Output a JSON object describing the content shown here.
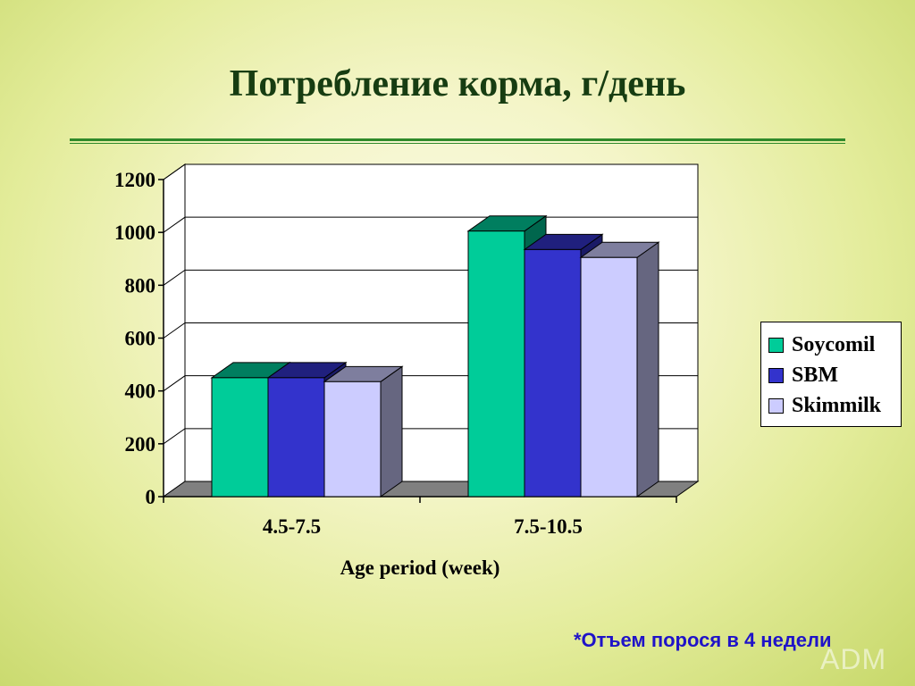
{
  "slide": {
    "title": "Потребление корма, г/день",
    "footnote": "*Отъем порося в 4 недели",
    "logo_text": "ADM"
  },
  "chart_data": {
    "type": "bar",
    "categories": [
      "4.5-7.5",
      "7.5-10.5"
    ],
    "series": [
      {
        "name": "Soycomil",
        "values": [
          450,
          1005
        ],
        "color": "#00cc99"
      },
      {
        "name": "SBM",
        "values": [
          450,
          935
        ],
        "color": "#3333cc"
      },
      {
        "name": "Skimmilk",
        "values": [
          435,
          905
        ],
        "color": "#ccccff"
      }
    ],
    "xlabel": "Age period (week)",
    "ylabel": "",
    "ylim": [
      0,
      1200
    ],
    "yticks": [
      0,
      200,
      400,
      600,
      800,
      1000,
      1200
    ],
    "grid": true,
    "legend_position": "right",
    "three_d": true
  }
}
